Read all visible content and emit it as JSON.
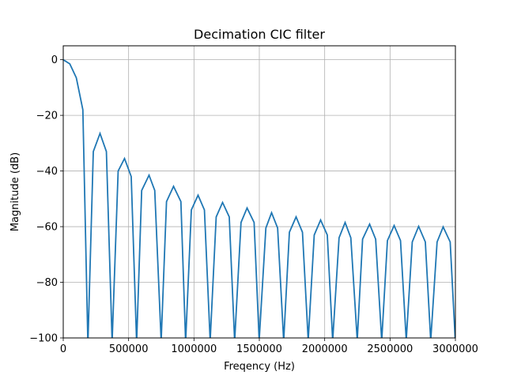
{
  "chart_data": {
    "type": "line",
    "title": "Decimation CIC filter",
    "xlabel": "Freqency (Hz)",
    "ylabel": "Magnitude (dB)",
    "xlim": [
      0,
      3000000
    ],
    "ylim": [
      -100,
      5
    ],
    "x_ticks": [
      0,
      500000,
      1000000,
      1500000,
      2000000,
      2500000,
      3000000
    ],
    "x_tick_labels": [
      "0",
      "500000",
      "1000000",
      "1500000",
      "2000000",
      "2500000",
      "3000000"
    ],
    "y_ticks": [
      0,
      -20,
      -40,
      -60,
      -80,
      -100
    ],
    "y_tick_labels": [
      "0",
      "−20",
      "−40",
      "−60",
      "−80",
      "−100"
    ],
    "grid": true,
    "line_color": "#1f77b4",
    "series": [
      {
        "x": [
          0,
          50000,
          100000,
          150000,
          187500,
          190000,
          230000,
          281250,
          330000,
          373000,
          375000,
          420000,
          468750,
          520000,
          560000,
          562500,
          600000,
          656250,
          700000,
          748000,
          750000,
          790000,
          843750,
          900000,
          935000,
          937500,
          980000,
          1031250,
          1080000,
          1123000,
          1125000,
          1170000,
          1218750,
          1270000,
          1310000,
          1312500,
          1360000,
          1406250,
          1460000,
          1498000,
          1500000,
          1550000,
          1593750,
          1640000,
          1685000,
          1687500,
          1730000,
          1781250,
          1830000,
          1873000,
          1875000,
          1920000,
          1968750,
          2020000,
          2060000,
          2062500,
          2110000,
          2156250,
          2200000,
          2248000,
          2250000,
          2290000,
          2343750,
          2390000,
          2435000,
          2437500,
          2480000,
          2531250,
          2580000,
          2623000,
          2625000,
          2670000,
          2718750,
          2770000,
          2810000,
          2812500,
          2860000,
          2906250,
          2960000,
          2998000,
          3000000
        ],
        "y": [
          0,
          -1.5,
          -6.5,
          -18,
          -100,
          -100,
          -33,
          -26.5,
          -33,
          -100,
          -100,
          -40,
          -35.5,
          -42,
          -100,
          -100,
          -47,
          -41.5,
          -47,
          -100,
          -100,
          -51,
          -45.5,
          -51,
          -100,
          -100,
          -54,
          -48.7,
          -54,
          -100,
          -100,
          -56.5,
          -51.3,
          -56.5,
          -100,
          -100,
          -58.5,
          -53.3,
          -58.5,
          -100,
          -100,
          -60.5,
          -55.0,
          -60.5,
          -100,
          -100,
          -62,
          -56.5,
          -62,
          -100,
          -100,
          -63,
          -57.6,
          -63,
          -100,
          -100,
          -64,
          -58.5,
          -64,
          -100,
          -100,
          -64.5,
          -59.1,
          -64.5,
          -100,
          -100,
          -65,
          -59.6,
          -65,
          -100,
          -100,
          -65.5,
          -59.9,
          -65.5,
          -100,
          -100,
          -65.5,
          -60.1,
          -65.5,
          -100,
          -100
        ]
      }
    ]
  }
}
